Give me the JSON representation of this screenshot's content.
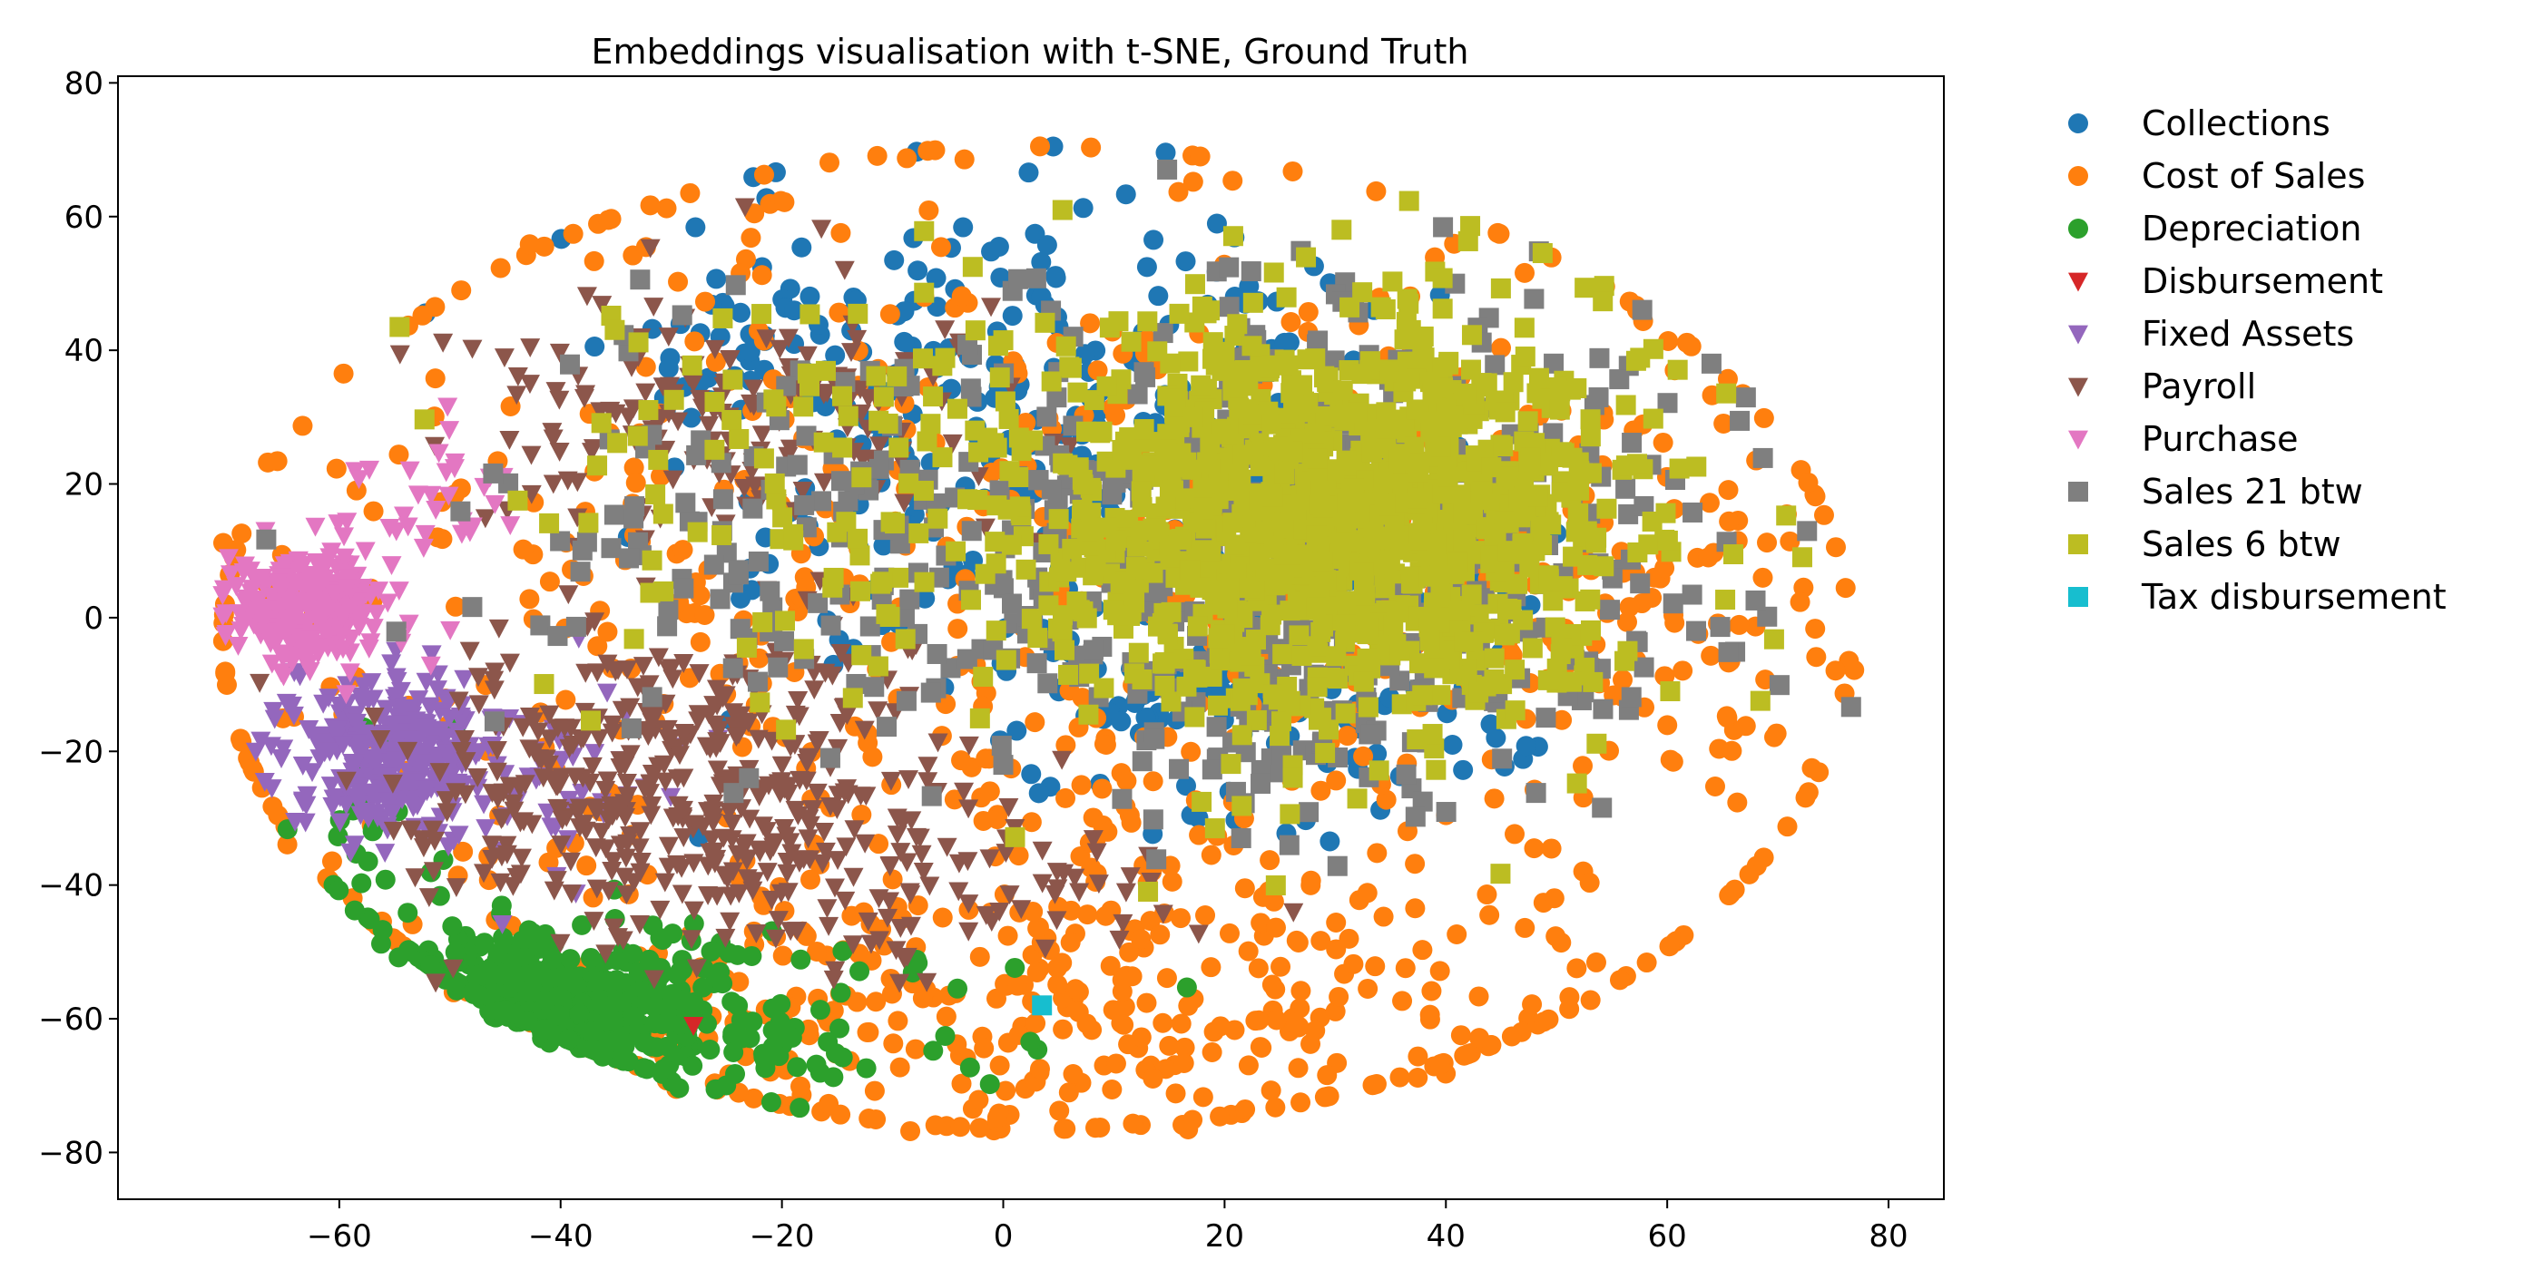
{
  "chart_data": {
    "type": "scatter",
    "title": "Embeddings visualisation with t-SNE, Ground Truth",
    "xlabel": "",
    "ylabel": "",
    "xlim": [
      -80,
      85
    ],
    "ylim": [
      -87,
      81
    ],
    "xticks": [
      -60,
      -40,
      -20,
      0,
      20,
      40,
      60,
      80
    ],
    "yticks": [
      80,
      60,
      40,
      20,
      0,
      -20,
      -40,
      -60,
      -80
    ],
    "tick_labels_x": [
      "−60",
      "−40",
      "−20",
      "0",
      "20",
      "40",
      "60",
      "80"
    ],
    "tick_labels_y": [
      "80",
      "60",
      "40",
      "20",
      "0",
      "−20",
      "−40",
      "−60",
      "−80"
    ],
    "grid": false,
    "legend_position": "outside-right",
    "series": [
      {
        "name": "Collections",
        "color": "#1f77b4",
        "marker": "circle",
        "clusters": [
          [
            5,
            25,
            30,
            35,
            260
          ],
          [
            20,
            -10,
            25,
            20,
            120
          ],
          [
            -20,
            40,
            12,
            12,
            40
          ]
        ]
      },
      {
        "name": "Cost of Sales",
        "color": "#ff7f0e",
        "marker": "circle",
        "clusters": [
          [
            0,
            -5,
            70,
            75,
            700
          ],
          [
            0,
            -58,
            45,
            18,
            260
          ],
          [
            55,
            0,
            20,
            40,
            120
          ]
        ]
      },
      {
        "name": "Depreciation",
        "color": "#2ca02c",
        "marker": "circle",
        "clusters": [
          [
            -40,
            -57,
            14,
            10,
            420
          ],
          [
            -20,
            -62,
            20,
            12,
            60
          ],
          [
            -58,
            -35,
            8,
            20,
            30
          ]
        ]
      },
      {
        "name": "Disbursement",
        "color": "#d62728",
        "marker": "triangle-down",
        "points": [
          [
            -28,
            -61
          ]
        ]
      },
      {
        "name": "Fixed Assets",
        "color": "#9467bd",
        "marker": "triangle-down",
        "clusters": [
          [
            -55,
            -21,
            9,
            10,
            300
          ],
          [
            -40,
            -22,
            15,
            14,
            50
          ]
        ]
      },
      {
        "name": "Payroll",
        "color": "#8c564b",
        "marker": "triangle-down",
        "clusters": [
          [
            -30,
            -25,
            22,
            20,
            420
          ],
          [
            -25,
            30,
            20,
            18,
            180
          ],
          [
            -5,
            -40,
            25,
            12,
            80
          ]
        ]
      },
      {
        "name": "Purchase",
        "color": "#e377c2",
        "marker": "triangle-down",
        "clusters": [
          [
            -63,
            1,
            6,
            8,
            260
          ],
          [
            -50,
            18,
            8,
            10,
            30
          ]
        ]
      },
      {
        "name": "Sales 21 btw",
        "color": "#7f7f7f",
        "marker": "square",
        "clusters": [
          [
            30,
            10,
            30,
            35,
            520
          ],
          [
            -15,
            10,
            30,
            30,
            160
          ]
        ]
      },
      {
        "name": "Sales 6 btw",
        "color": "#bcbd22",
        "marker": "square",
        "clusters": [
          [
            30,
            15,
            25,
            28,
            1100
          ],
          [
            -10,
            20,
            30,
            30,
            140
          ]
        ]
      },
      {
        "name": "Tax disbursement",
        "color": "#17becf",
        "marker": "square",
        "points": [
          [
            3.5,
            -58
          ]
        ]
      }
    ]
  }
}
